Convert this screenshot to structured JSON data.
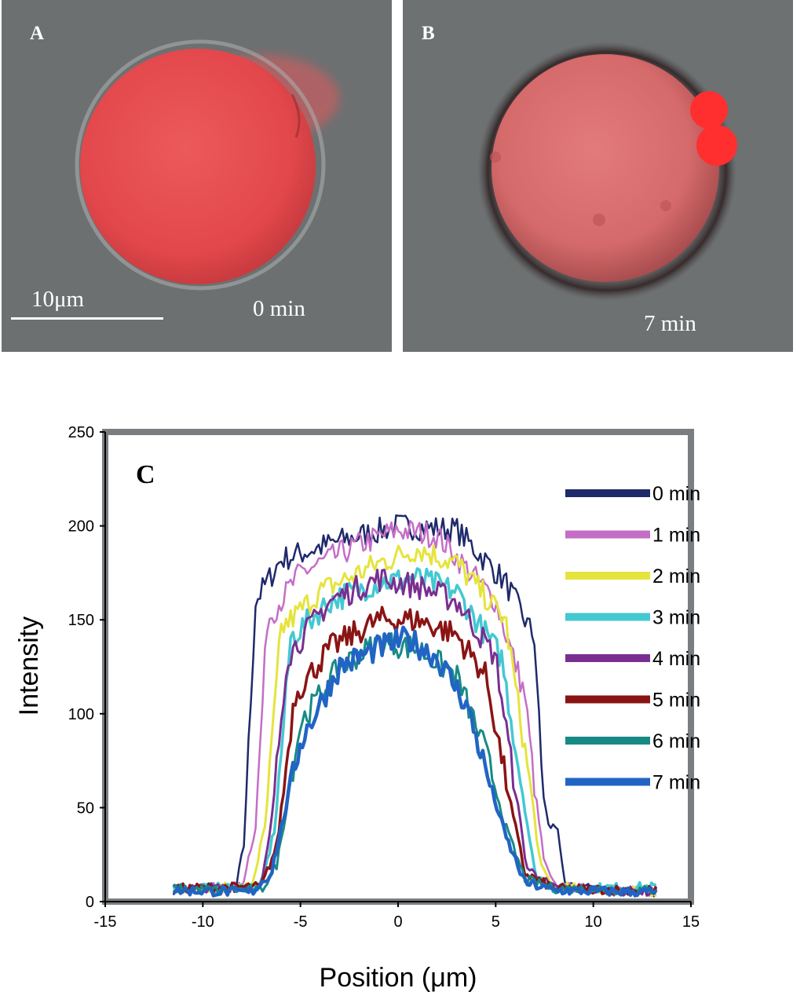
{
  "panel_a": {
    "label": "A",
    "time": "0 min",
    "scalebar": "10μm"
  },
  "panel_b": {
    "label": "B",
    "time": "7 min"
  },
  "colors": {
    "background": "#6e7172",
    "cell": "#e0484c",
    "bleb": "#ff2b2b"
  },
  "chart_data": {
    "type": "line",
    "panel_label": "C",
    "xlabel": "Position (μm)",
    "ylabel": "Intensity",
    "xlim": [
      -15,
      15
    ],
    "ylim": [
      0,
      250
    ],
    "xticks": [
      -15,
      -10,
      -5,
      0,
      5,
      10,
      15
    ],
    "yticks": [
      0,
      50,
      100,
      150,
      200,
      250
    ],
    "x_range": [
      -11.5,
      13.3
    ],
    "legend_position": "right",
    "series": [
      {
        "name": "0 min",
        "color": "#1f2a6b",
        "plateau": 190,
        "width": 2.5,
        "profile": [
          [
            -11.5,
            6
          ],
          [
            -8.3,
            7
          ],
          [
            -7.9,
            30
          ],
          [
            -7.3,
            160
          ],
          [
            -6,
            182
          ],
          [
            -3,
            192
          ],
          [
            0,
            200
          ],
          [
            3,
            198
          ],
          [
            5.5,
            170
          ],
          [
            7,
            140
          ],
          [
            7.4,
            60
          ],
          [
            7.7,
            40
          ],
          [
            8.2,
            40
          ],
          [
            8.5,
            8
          ],
          [
            13.3,
            5
          ]
        ]
      },
      {
        "name": "1 min",
        "color": "#c46ec6",
        "plateau": 188,
        "width": 2.5,
        "profile": [
          [
            -11.5,
            7
          ],
          [
            -8,
            8
          ],
          [
            -7.3,
            40
          ],
          [
            -6.7,
            150
          ],
          [
            -5,
            175
          ],
          [
            -2,
            190
          ],
          [
            0,
            198
          ],
          [
            2,
            195
          ],
          [
            5,
            160
          ],
          [
            6.5,
            110
          ],
          [
            7,
            60
          ],
          [
            7.5,
            20
          ],
          [
            8,
            8
          ],
          [
            13.3,
            5
          ]
        ]
      },
      {
        "name": "2 min",
        "color": "#e5e43c",
        "plateau": 180,
        "width": 3,
        "profile": [
          [
            -11.5,
            7
          ],
          [
            -7.5,
            8
          ],
          [
            -6.8,
            40
          ],
          [
            -6,
            145
          ],
          [
            -4,
            165
          ],
          [
            -1,
            180
          ],
          [
            1,
            188
          ],
          [
            3,
            180
          ],
          [
            5.5,
            150
          ],
          [
            6.8,
            60
          ],
          [
            7.3,
            18
          ],
          [
            8,
            8
          ],
          [
            13.3,
            5
          ]
        ]
      },
      {
        "name": "3 min",
        "color": "#44c8d2",
        "plateau": 170,
        "width": 3.5,
        "profile": [
          [
            -11.5,
            7
          ],
          [
            -7,
            8
          ],
          [
            -6.3,
            40
          ],
          [
            -5.5,
            140
          ],
          [
            -3.5,
            160
          ],
          [
            -1,
            170
          ],
          [
            1,
            172
          ],
          [
            3,
            165
          ],
          [
            5.3,
            130
          ],
          [
            6.5,
            50
          ],
          [
            7,
            15
          ],
          [
            8,
            7
          ],
          [
            13.3,
            8
          ]
        ]
      },
      {
        "name": "4 min",
        "color": "#7a2f90",
        "plateau": 165,
        "width": 3,
        "profile": [
          [
            -11.5,
            7
          ],
          [
            -7,
            8
          ],
          [
            -6.5,
            40
          ],
          [
            -5.7,
            130
          ],
          [
            -3.5,
            160
          ],
          [
            -1,
            172
          ],
          [
            1,
            168
          ],
          [
            3,
            160
          ],
          [
            5,
            130
          ],
          [
            6,
            60
          ],
          [
            6.6,
            18
          ],
          [
            8,
            7
          ],
          [
            13.3,
            5
          ]
        ]
      },
      {
        "name": "5 min",
        "color": "#8a1414",
        "plateau": 145,
        "width": 3.5,
        "profile": [
          [
            -11.5,
            7
          ],
          [
            -7,
            8
          ],
          [
            -6.2,
            30
          ],
          [
            -5.3,
            110
          ],
          [
            -3.5,
            135
          ],
          [
            -1,
            150
          ],
          [
            1,
            150
          ],
          [
            3,
            142
          ],
          [
            4.5,
            120
          ],
          [
            5.8,
            50
          ],
          [
            6.5,
            15
          ],
          [
            8,
            7
          ],
          [
            13.3,
            6
          ]
        ]
      },
      {
        "name": "6 min",
        "color": "#178a86",
        "plateau": 135,
        "width": 3,
        "profile": [
          [
            -11.5,
            7
          ],
          [
            -7,
            6
          ],
          [
            -6.2,
            20
          ],
          [
            -5,
            95
          ],
          [
            -3,
            125
          ],
          [
            -1,
            138
          ],
          [
            1,
            135
          ],
          [
            3,
            120
          ],
          [
            4.5,
            80
          ],
          [
            5.5,
            40
          ],
          [
            6.5,
            12
          ],
          [
            8,
            7
          ],
          [
            13.3,
            6
          ]
        ]
      },
      {
        "name": "7 min",
        "color": "#2164c4",
        "plateau": 130,
        "width": 4.5,
        "profile": [
          [
            -11.5,
            6
          ],
          [
            -7.5,
            5
          ],
          [
            -6.5,
            15
          ],
          [
            -5,
            85
          ],
          [
            -3,
            125
          ],
          [
            -1,
            135
          ],
          [
            0.5,
            140
          ],
          [
            2,
            130
          ],
          [
            3.5,
            105
          ],
          [
            4.5,
            70
          ],
          [
            5.5,
            35
          ],
          [
            6.5,
            10
          ],
          [
            8,
            6
          ],
          [
            13.3,
            5
          ]
        ]
      }
    ]
  }
}
